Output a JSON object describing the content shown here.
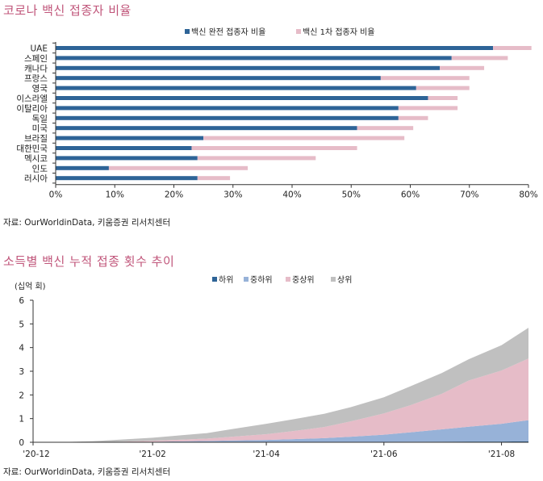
{
  "charts": {
    "vaccination": {
      "title": "코로나 백신 접종자 비율",
      "source": "자료: OurWorldinData, 키움증권 리서치센터"
    },
    "income": {
      "title": "소득별 백신 누적 접종 횟수 추이",
      "source": "자료: OurWorldinData, 키움증권 리서치센터",
      "unit_label": "(십억 회)"
    }
  },
  "chart_data": [
    {
      "type": "bar",
      "orientation": "horizontal",
      "stacked": true,
      "title": "코로나 백신 접종자 비율",
      "categories": [
        "UAE",
        "스페인",
        "캐나다",
        "프랑스",
        "영국",
        "이스라엘",
        "이탈리아",
        "독일",
        "미국",
        "브라질",
        "대한민국",
        "멕시코",
        "인도",
        "러시아"
      ],
      "series": [
        {
          "name": "백신 완전 접종자 비율",
          "color": "#2e6497",
          "values": [
            74,
            67,
            65,
            55,
            61,
            63,
            58,
            58,
            51,
            25,
            23,
            24,
            9,
            24
          ]
        },
        {
          "name": "백신 1차 접종자 비율",
          "color": "#e6bcc8",
          "values": [
            6.5,
            9.5,
            7.5,
            15,
            9,
            5,
            10,
            5,
            9.5,
            34,
            28,
            20,
            23.5,
            5.5
          ]
        }
      ],
      "xlim": [
        0,
        80
      ],
      "xticks": [
        0,
        10,
        20,
        30,
        40,
        50,
        60,
        70,
        80
      ],
      "xtick_format": "percent",
      "legend_position": "top-center",
      "grid": false
    },
    {
      "type": "area",
      "stacked": true,
      "title": "소득별 백신 누적 접종 횟수 추이",
      "ylabel": "(십억 회)",
      "ylim": [
        0,
        6
      ],
      "yticks": [
        0,
        1,
        2,
        3,
        4,
        5,
        6
      ],
      "x_tick_labels": [
        "'20-12",
        "'21-02",
        "'21-04",
        "'21-06",
        "'21-08"
      ],
      "x": [
        "2020-12-01",
        "2020-12-15",
        "2021-01-01",
        "2021-01-15",
        "2021-02-01",
        "2021-02-15",
        "2021-03-01",
        "2021-03-15",
        "2021-04-01",
        "2021-04-15",
        "2021-05-01",
        "2021-05-15",
        "2021-06-01",
        "2021-06-15",
        "2021-07-01",
        "2021-07-15",
        "2021-08-01",
        "2021-08-15"
      ],
      "series": [
        {
          "name": "하위",
          "color": "#2e6497",
          "values": [
            0,
            0,
            0,
            0,
            0.002,
            0.003,
            0.005,
            0.007,
            0.009,
            0.011,
            0.013,
            0.016,
            0.019,
            0.022,
            0.025,
            0.028,
            0.031,
            0.035
          ]
        },
        {
          "name": "중하위",
          "color": "#97b2d8",
          "values": [
            0,
            0,
            0,
            0.005,
            0.02,
            0.035,
            0.05,
            0.07,
            0.09,
            0.12,
            0.16,
            0.22,
            0.3,
            0.4,
            0.52,
            0.63,
            0.75,
            0.9
          ]
        },
        {
          "name": "중상위",
          "color": "#e6bcc8",
          "values": [
            0,
            0,
            0.005,
            0.015,
            0.04,
            0.07,
            0.1,
            0.16,
            0.24,
            0.34,
            0.47,
            0.65,
            0.9,
            1.15,
            1.5,
            1.95,
            2.25,
            2.6
          ]
        },
        {
          "name": "상위",
          "color": "#c0c0c0",
          "values": [
            0,
            0.005,
            0.04,
            0.09,
            0.13,
            0.18,
            0.23,
            0.33,
            0.44,
            0.5,
            0.56,
            0.6,
            0.68,
            0.8,
            0.88,
            0.9,
            1.07,
            1.3
          ]
        }
      ],
      "legend_position": "top-center",
      "grid": false
    }
  ]
}
